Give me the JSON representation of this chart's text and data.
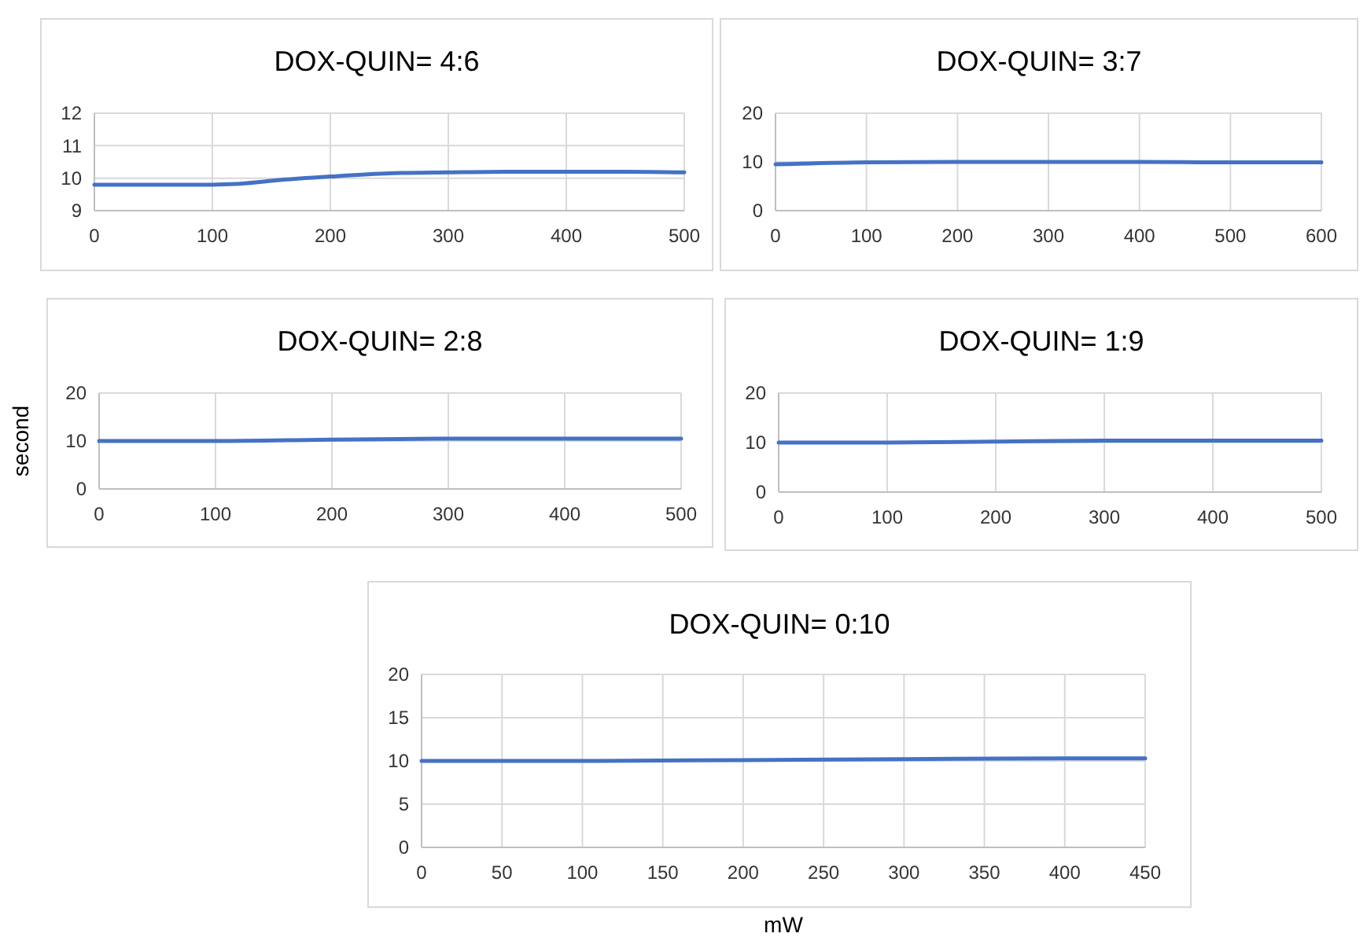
{
  "chart_data": [
    {
      "type": "line",
      "title": "DOX-QUIN= 4:6",
      "series": [
        {
          "color": "#4472c4",
          "x": [
            0,
            50,
            100,
            120,
            150,
            200,
            250,
            300,
            350,
            400,
            450,
            500
          ],
          "values": [
            9.8,
            9.8,
            9.8,
            9.82,
            9.92,
            10.05,
            10.15,
            10.18,
            10.2,
            10.2,
            10.2,
            10.18
          ]
        }
      ],
      "xlim": [
        0,
        500
      ],
      "xticks": [
        0,
        100,
        200,
        300,
        400,
        500
      ],
      "ylim": [
        9,
        12
      ],
      "yticks": [
        9,
        10,
        11,
        12
      ],
      "grid": true,
      "marker": "none",
      "line_style": "solid"
    },
    {
      "type": "line",
      "title": "DOX-QUIN= 3:7",
      "series": [
        {
          "color": "#4472c4",
          "x": [
            0,
            100,
            200,
            300,
            400,
            500,
            600
          ],
          "values": [
            9.5,
            9.9,
            10,
            10,
            10,
            9.9,
            9.9
          ]
        }
      ],
      "xlim": [
        0,
        600
      ],
      "xticks": [
        0,
        100,
        200,
        300,
        400,
        500,
        600
      ],
      "ylim": [
        0,
        20
      ],
      "yticks": [
        0,
        10,
        20
      ],
      "grid": true,
      "marker": "none",
      "line_style": "solid"
    },
    {
      "type": "line",
      "title": "DOX-QUIN= 2:8",
      "ylabel": "second",
      "series": [
        {
          "color": "#4472c4",
          "x": [
            0,
            100,
            200,
            300,
            400,
            500
          ],
          "values": [
            10,
            10,
            10.3,
            10.5,
            10.5,
            10.5
          ]
        }
      ],
      "xlim": [
        0,
        500
      ],
      "xticks": [
        0,
        100,
        200,
        300,
        400,
        500
      ],
      "ylim": [
        0,
        20
      ],
      "yticks": [
        0,
        10,
        20
      ],
      "grid": true,
      "marker": "none",
      "line_style": "solid"
    },
    {
      "type": "line",
      "title": "DOX-QUIN= 1:9",
      "series": [
        {
          "color": "#4472c4",
          "x": [
            0,
            100,
            200,
            300,
            400,
            500
          ],
          "values": [
            10,
            10,
            10.2,
            10.4,
            10.4,
            10.4
          ]
        }
      ],
      "xlim": [
        0,
        500
      ],
      "xticks": [
        0,
        100,
        200,
        300,
        400,
        500
      ],
      "ylim": [
        0,
        20
      ],
      "yticks": [
        0,
        10,
        20
      ],
      "grid": true,
      "marker": "none",
      "line_style": "solid"
    },
    {
      "type": "line",
      "title": "DOX-QUIN= 0:10",
      "xlabel": "mW",
      "series": [
        {
          "color": "#4472c4",
          "x": [
            0,
            100,
            200,
            300,
            400,
            450
          ],
          "values": [
            10,
            10,
            10.1,
            10.2,
            10.3,
            10.3
          ]
        }
      ],
      "xlim": [
        0,
        450
      ],
      "xticks": [
        0,
        50,
        100,
        150,
        200,
        250,
        300,
        350,
        400,
        450
      ],
      "ylim": [
        0,
        20
      ],
      "yticks": [
        0,
        5,
        10,
        15,
        20
      ],
      "grid": true,
      "marker": "none",
      "line_style": "solid"
    }
  ]
}
